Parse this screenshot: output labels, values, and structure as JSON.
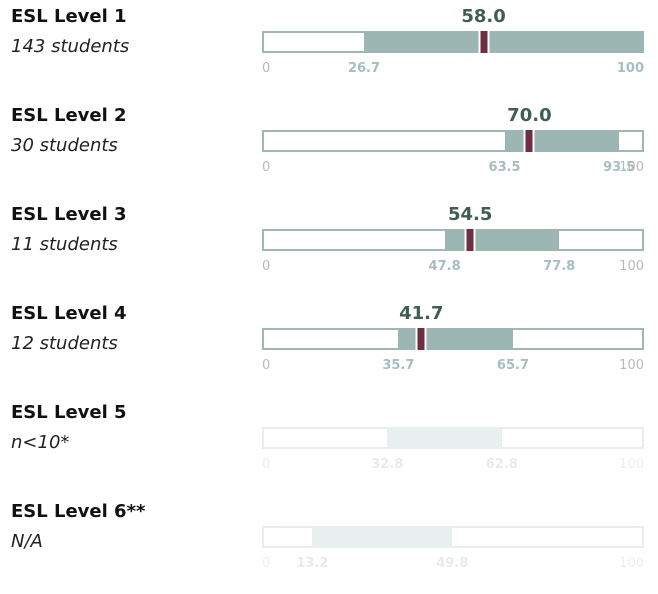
{
  "chart_data": {
    "type": "bar",
    "axis_min_label": "0",
    "axis_max_label": "100",
    "xlim": [
      0,
      100
    ],
    "colors": {
      "range": "#9cb6b4",
      "marker": "#6e2f43",
      "frame": "#9fb8b6",
      "faded": "#e9eeee",
      "score": "#3f5d55"
    },
    "rows": [
      {
        "level": "ESL Level 1",
        "count": "143 students",
        "score": 58.0,
        "score_label": "58.0",
        "low": 26.7,
        "high": 100,
        "low_label": "26.7",
        "high_label": "100",
        "faded": false
      },
      {
        "level": "ESL Level 2",
        "count": "30 students",
        "score": 70.0,
        "score_label": "70.0",
        "low": 63.5,
        "high": 93.5,
        "low_label": "63.5",
        "high_label": "93.5",
        "faded": false
      },
      {
        "level": "ESL Level 3",
        "count": "11 students",
        "score": 54.5,
        "score_label": "54.5",
        "low": 47.8,
        "high": 77.8,
        "low_label": "47.8",
        "high_label": "77.8",
        "faded": false
      },
      {
        "level": "ESL Level 4",
        "count": "12 students",
        "score": 41.7,
        "score_label": "41.7",
        "low": 35.7,
        "high": 65.7,
        "low_label": "35.7",
        "high_label": "65.7",
        "faded": false
      },
      {
        "level": "ESL Level 5",
        "count": "n<10*",
        "score": null,
        "score_label": "",
        "low": 32.8,
        "high": 62.8,
        "low_label": "32.8",
        "high_label": "62.8",
        "faded": true
      },
      {
        "level": "ESL Level 6**",
        "count": "N/A",
        "score": null,
        "score_label": "",
        "low": 13.2,
        "high": 49.8,
        "low_label": "13.2",
        "high_label": "49.8",
        "faded": true
      }
    ]
  }
}
